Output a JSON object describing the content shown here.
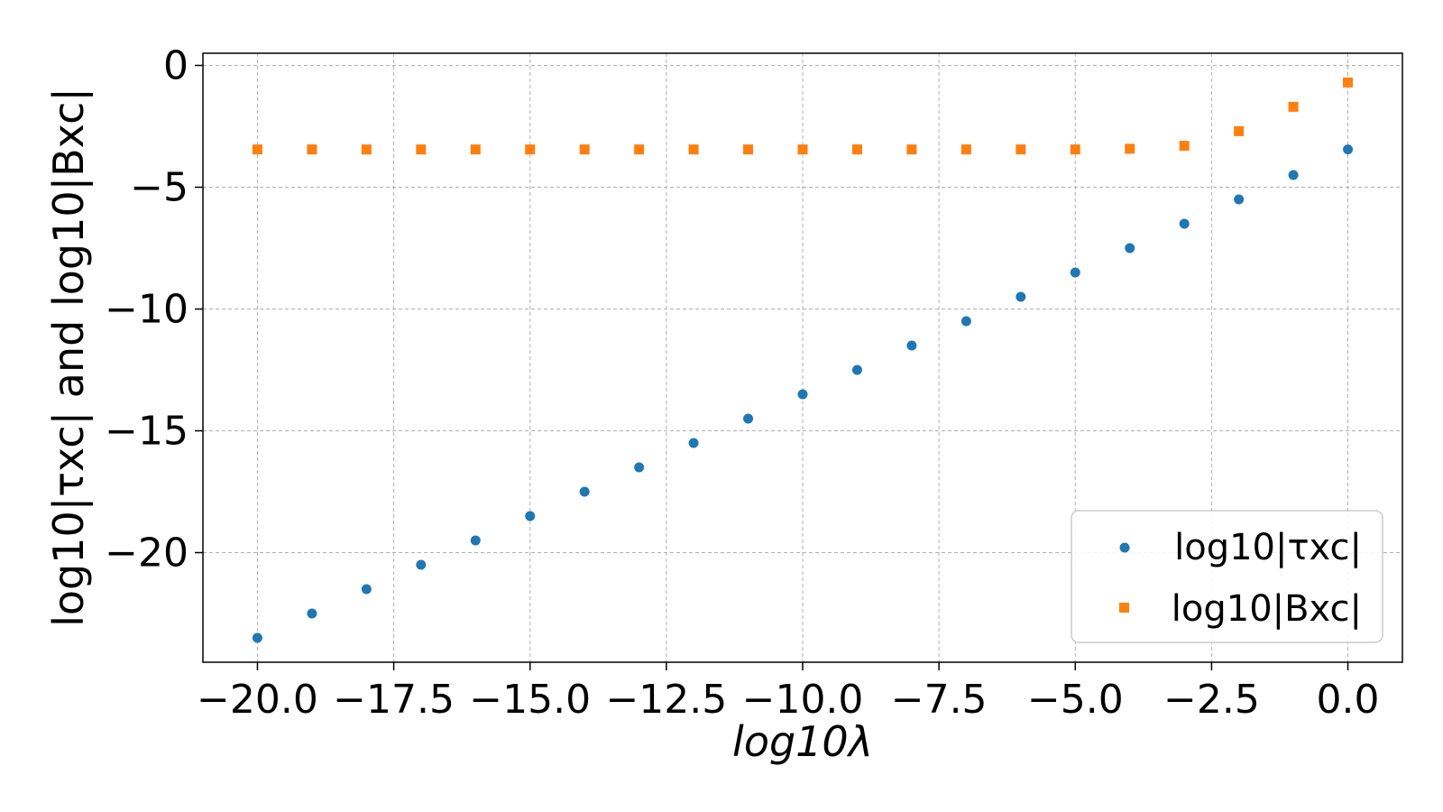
{
  "chart_data": {
    "type": "scatter",
    "xlabel": "log10λ",
    "ylabel": "log10|τxc| and log10|Bxc|",
    "xlim": [
      -21.0,
      1.0
    ],
    "ylim": [
      -24.5,
      0.5
    ],
    "xticks": [
      -20.0,
      -17.5,
      -15.0,
      -12.5,
      -10.0,
      -7.5,
      -5.0,
      -2.5,
      0.0
    ],
    "xtick_labels": [
      "−20.0",
      "−17.5",
      "−15.0",
      "−12.5",
      "−10.0",
      "−7.5",
      "−5.0",
      "−2.5",
      "0.0"
    ],
    "yticks": [
      0,
      -5,
      -10,
      -15,
      -20
    ],
    "ytick_labels": [
      "0",
      "−5",
      "−10",
      "−15",
      "−20"
    ],
    "grid": true,
    "legend_position": "lower-right",
    "x": [
      -20,
      -19,
      -18,
      -17,
      -16,
      -15,
      -14,
      -13,
      -12,
      -11,
      -10,
      -9,
      -8,
      -7,
      -6,
      -5,
      -4,
      -3,
      -2,
      -1,
      0
    ],
    "series": [
      {
        "name": "log10|τxc|",
        "marker": "circle",
        "color": "#1f77b4",
        "values": [
          -23.5,
          -22.5,
          -21.5,
          -20.5,
          -19.5,
          -18.5,
          -17.5,
          -16.5,
          -15.5,
          -14.5,
          -13.5,
          -12.5,
          -11.5,
          -10.5,
          -9.5,
          -8.5,
          -7.5,
          -6.5,
          -5.5,
          -4.5,
          -3.45
        ]
      },
      {
        "name": "log10|Bxc|",
        "marker": "square",
        "color": "#ff7f0e",
        "values": [
          -3.45,
          -3.45,
          -3.45,
          -3.45,
          -3.45,
          -3.45,
          -3.45,
          -3.45,
          -3.45,
          -3.45,
          -3.45,
          -3.45,
          -3.45,
          -3.45,
          -3.45,
          -3.45,
          -3.42,
          -3.3,
          -2.7,
          -1.7,
          -0.7
        ]
      }
    ]
  }
}
